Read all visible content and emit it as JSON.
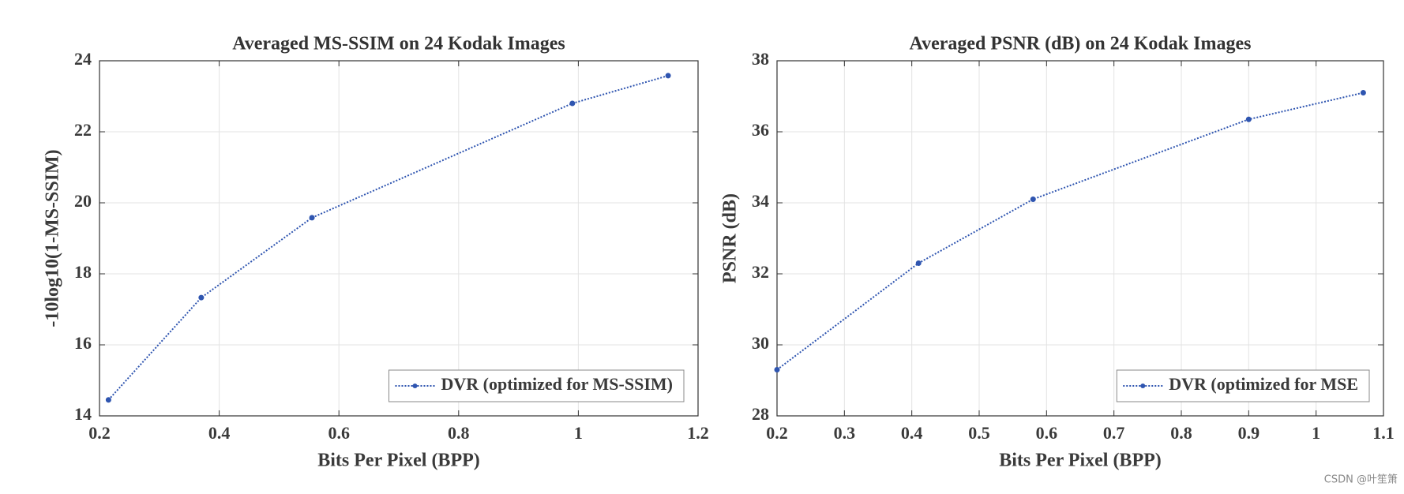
{
  "chart_data": [
    {
      "type": "line",
      "title": "Averaged MS-SSIM on 24 Kodak Images",
      "x_label": "Bits Per Pixel (BPP)",
      "y_label": "-10log10(1-MS-SSIM)",
      "series": [
        {
          "name": "DVR (optimized for MS-SSIM)",
          "color": "#2f55b0",
          "x": [
            0.215,
            0.37,
            0.555,
            0.99,
            1.15
          ],
          "values": [
            14.45,
            17.33,
            19.58,
            22.8,
            23.58
          ]
        }
      ],
      "xlim": [
        0.2,
        1.2
      ],
      "xticks": [
        0.2,
        0.4,
        0.6,
        0.8,
        1,
        1.2
      ],
      "ylim": [
        14,
        24
      ],
      "yticks": [
        14,
        16,
        18,
        20,
        22,
        24
      ],
      "grid": true,
      "legend": "lower right"
    },
    {
      "type": "line",
      "title": "Averaged PSNR (dB) on 24 Kodak Images",
      "x_label": "Bits Per Pixel (BPP)",
      "y_label": "PSNR (dB)",
      "series": [
        {
          "name": "DVR (optimized for MSE",
          "color": "#2f55b0",
          "x": [
            0.2,
            0.41,
            0.58,
            0.9,
            1.07
          ],
          "values": [
            29.3,
            32.3,
            34.1,
            36.35,
            37.1
          ]
        }
      ],
      "xlim": [
        0.2,
        1.1
      ],
      "xticks": [
        0.2,
        0.3,
        0.4,
        0.5,
        0.6,
        0.7,
        0.8,
        0.9,
        1,
        1.1
      ],
      "ylim": [
        28,
        38
      ],
      "yticks": [
        28,
        30,
        32,
        34,
        36,
        38
      ],
      "grid": true,
      "legend": "lower right"
    }
  ],
  "watermark": "CSDN @叶笙箫"
}
